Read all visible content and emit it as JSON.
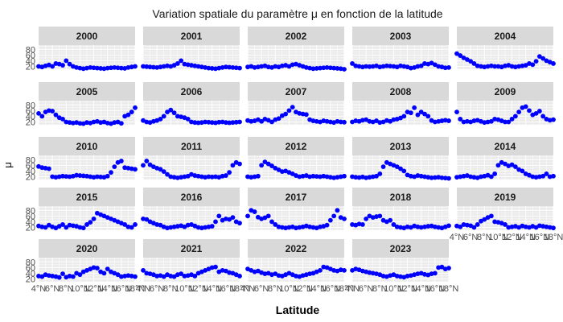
{
  "chart_data": {
    "type": "scatter",
    "facet": "year",
    "title": "Variation spatiale du paramètre μ en fonction de la latitude",
    "xlabel": "Latitude",
    "ylabel": "μ",
    "x_ticks": [
      "4°N",
      "6°N",
      "8°N",
      "10°N",
      "12°N",
      "14°N",
      "16°N",
      "18°N"
    ],
    "x_range": [
      4,
      18
    ],
    "y_ticks": [
      20,
      40,
      60,
      80
    ],
    "y_range": [
      10,
      95
    ],
    "point_color": "#0000ff",
    "panel_background": "#ebebeb",
    "strip_background": "#d9d9d9",
    "grid": true,
    "latitudes": [
      4.0,
      4.5,
      5.0,
      5.5,
      6.0,
      6.5,
      7.0,
      7.5,
      8.0,
      8.5,
      9.0,
      9.5,
      10.0,
      10.5,
      11.0,
      11.5,
      12.0,
      12.5,
      13.0,
      13.5,
      14.0,
      14.5,
      15.0,
      15.5,
      16.0,
      16.5,
      17.0,
      17.5,
      18.0
    ],
    "series": [
      {
        "name": "2000",
        "values": [
          20,
          18,
          22,
          25,
          20,
          30,
          28,
          24,
          40,
          28,
          20,
          16,
          14,
          12,
          14,
          16,
          15,
          14,
          13,
          12,
          14,
          15,
          16,
          15,
          14,
          13,
          16,
          18,
          20
        ]
      },
      {
        "name": "2001",
        "values": [
          20,
          19,
          18,
          17,
          16,
          18,
          20,
          22,
          20,
          24,
          30,
          40,
          28,
          26,
          24,
          22,
          20,
          18,
          16,
          14,
          13,
          12,
          14,
          16,
          18,
          17,
          16,
          15,
          14
        ]
      },
      {
        "name": "2002",
        "values": [
          18,
          20,
          16,
          18,
          20,
          22,
          18,
          16,
          20,
          18,
          22,
          24,
          20,
          26,
          28,
          24,
          20,
          16,
          14,
          12,
          13,
          14,
          15,
          16,
          15,
          14,
          13,
          12,
          10
        ]
      },
      {
        "name": "2003",
        "values": [
          30,
          22,
          20,
          18,
          20,
          19,
          20,
          22,
          18,
          20,
          22,
          21,
          20,
          18,
          22,
          20,
          18,
          14,
          16,
          20,
          22,
          30,
          28,
          32,
          26,
          20,
          18,
          15,
          16
        ]
      },
      {
        "name": "2004",
        "values": [
          65,
          58,
          50,
          44,
          38,
          30,
          22,
          20,
          18,
          20,
          22,
          20,
          20,
          18,
          22,
          24,
          20,
          18,
          20,
          22,
          24,
          30,
          26,
          38,
          55,
          48,
          40,
          35,
          30
        ]
      },
      {
        "name": "2005",
        "values": [
          50,
          40,
          55,
          60,
          58,
          45,
          35,
          30,
          20,
          18,
          16,
          18,
          15,
          14,
          18,
          16,
          20,
          22,
          18,
          20,
          16,
          14,
          18,
          20,
          15,
          40,
          45,
          55,
          70
        ]
      },
      {
        "name": "2006",
        "values": [
          25,
          20,
          18,
          22,
          25,
          30,
          40,
          55,
          62,
          52,
          40,
          38,
          35,
          30,
          20,
          18,
          17,
          18,
          20,
          19,
          18,
          17,
          19,
          20,
          18,
          17,
          18,
          19,
          20
        ]
      },
      {
        "name": "2007",
        "values": [
          25,
          22,
          24,
          28,
          22,
          30,
          26,
          20,
          28,
          32,
          42,
          48,
          60,
          72,
          55,
          50,
          48,
          46,
          28,
          24,
          22,
          20,
          24,
          22,
          20,
          18,
          22,
          20,
          19
        ]
      },
      {
        "name": "2008",
        "values": [
          20,
          24,
          22,
          26,
          28,
          22,
          20,
          24,
          18,
          20,
          25,
          22,
          28,
          30,
          34,
          40,
          55,
          52,
          70,
          45,
          55,
          48,
          40,
          25,
          20,
          22,
          24,
          26,
          24
        ]
      },
      {
        "name": "2009",
        "values": [
          55,
          30,
          20,
          22,
          20,
          24,
          26,
          22,
          18,
          20,
          22,
          30,
          28,
          24,
          20,
          20,
          30,
          40,
          55,
          70,
          74,
          60,
          45,
          50,
          58,
          40,
          30,
          26,
          28
        ]
      },
      {
        "name": "2010",
        "values": [
          56,
          52,
          50,
          48,
          20,
          18,
          20,
          22,
          21,
          20,
          22,
          25,
          24,
          23,
          22,
          20,
          18,
          20,
          19,
          18,
          22,
          35,
          55,
          70,
          75,
          52,
          50,
          48,
          46
        ]
      },
      {
        "name": "2011",
        "values": [
          60,
          75,
          62,
          55,
          50,
          46,
          38,
          28,
          20,
          18,
          16,
          18,
          20,
          22,
          28,
          24,
          22,
          20,
          18,
          20,
          19,
          20,
          18,
          22,
          24,
          35,
          60,
          70,
          65
        ]
      },
      {
        "name": "2012",
        "values": [
          20,
          18,
          20,
          22,
          60,
          72,
          65,
          58,
          50,
          44,
          38,
          40,
          35,
          30,
          24,
          20,
          22,
          24,
          20,
          22,
          21,
          20,
          22,
          20,
          18,
          16,
          18,
          20,
          22
        ]
      },
      {
        "name": "2013",
        "values": [
          20,
          18,
          17,
          19,
          16,
          18,
          20,
          22,
          30,
          55,
          70,
          65,
          60,
          55,
          48,
          40,
          26,
          22,
          20,
          24,
          22,
          20,
          18,
          16,
          17,
          18,
          16,
          15,
          14
        ]
      },
      {
        "name": "2014",
        "values": [
          18,
          20,
          22,
          24,
          20,
          18,
          16,
          20,
          22,
          25,
          20,
          30,
          60,
          70,
          65,
          58,
          62,
          55,
          45,
          40,
          30,
          25,
          20,
          18,
          20,
          22,
          30,
          20,
          22
        ]
      },
      {
        "name": "2015",
        "values": [
          25,
          22,
          20,
          28,
          22,
          18,
          24,
          30,
          20,
          28,
          26,
          24,
          20,
          18,
          30,
          38,
          50,
          70,
          65,
          60,
          55,
          50,
          45,
          40,
          35,
          30,
          22,
          20,
          30
        ]
      },
      {
        "name": "2016",
        "values": [
          50,
          48,
          40,
          35,
          30,
          28,
          22,
          18,
          20,
          22,
          24,
          26,
          22,
          28,
          30,
          25,
          20,
          18,
          20,
          22,
          24,
          40,
          60,
          45,
          50,
          48,
          55,
          40,
          35
        ]
      },
      {
        "name": "2017",
        "values": [
          60,
          80,
          75,
          56,
          50,
          54,
          60,
          40,
          30,
          22,
          20,
          18,
          20,
          22,
          18,
          20,
          22,
          25,
          22,
          20,
          18,
          22,
          24,
          28,
          45,
          60,
          80,
          55,
          50
        ]
      },
      {
        "name": "2018",
        "values": [
          30,
          28,
          32,
          30,
          50,
          60,
          55,
          58,
          60,
          45,
          40,
          45,
          30,
          22,
          20,
          18,
          22,
          20,
          25,
          22,
          20,
          22,
          24,
          25,
          22,
          20,
          18,
          22,
          26
        ]
      },
      {
        "name": "2019",
        "values": [
          25,
          22,
          30,
          28,
          26,
          20,
          30,
          42,
          48,
          55,
          60,
          40,
          38,
          35,
          30,
          20,
          22,
          24,
          20,
          25,
          22,
          20,
          24,
          20,
          26,
          24,
          22,
          20,
          18
        ]
      },
      {
        "name": "2020",
        "values": [
          30,
          28,
          35,
          32,
          30,
          28,
          25,
          38,
          26,
          30,
          28,
          40,
          35,
          45,
          50,
          55,
          60,
          58,
          45,
          40,
          55,
          45,
          40,
          35,
          28,
          30,
          32,
          30,
          28
        ]
      },
      {
        "name": "2021",
        "values": [
          50,
          40,
          38,
          35,
          30,
          32,
          28,
          35,
          30,
          28,
          35,
          38,
          30,
          32,
          35,
          30,
          40,
          45,
          50,
          55,
          60,
          62,
          45,
          50,
          48,
          42,
          40,
          35,
          30
        ]
      },
      {
        "name": "2022",
        "values": [
          55,
          50,
          45,
          48,
          42,
          38,
          40,
          35,
          38,
          32,
          30,
          35,
          40,
          35,
          30,
          28,
          32,
          35,
          38,
          40,
          45,
          50,
          62,
          60,
          55,
          50,
          48,
          52,
          50
        ]
      },
      {
        "name": "2023",
        "values": [
          50,
          55,
          52,
          48,
          45,
          42,
          40,
          38,
          35,
          30,
          28,
          32,
          35,
          30,
          28,
          26,
          30,
          32,
          35,
          38,
          40,
          36,
          34,
          38,
          40,
          60,
          62,
          55,
          58
        ]
      }
    ]
  }
}
